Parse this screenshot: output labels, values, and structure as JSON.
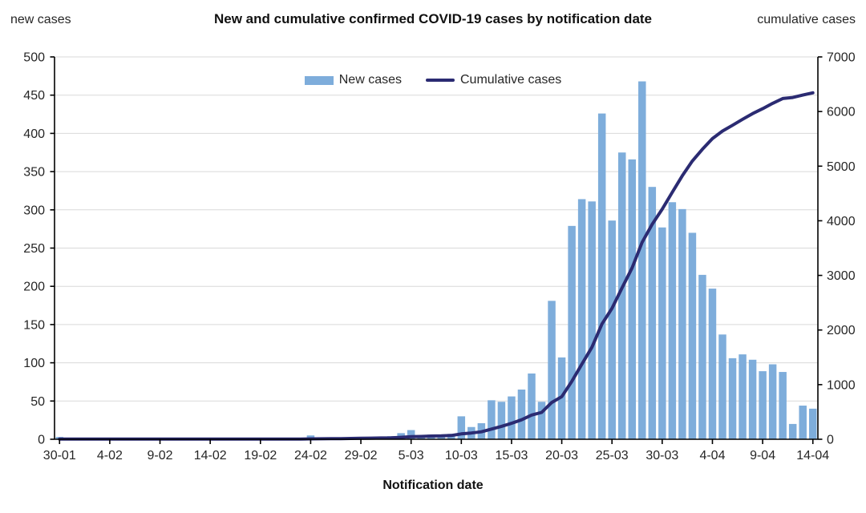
{
  "header": {
    "title": "New and cumulative confirmed COVID-19 cases by notification date",
    "left_axis_label": "new cases",
    "right_axis_label": "cumulative cases"
  },
  "legend": {
    "new_cases": "New cases",
    "cumulative": "Cumulative cases"
  },
  "colors": {
    "bar": "#7EADDB",
    "line": "#2B2B72",
    "grid": "#D9D9D9",
    "axis": "#000000",
    "text": "#262626"
  },
  "chart_data": {
    "type": "bar",
    "combo": "bar+line",
    "title": "New and cumulative confirmed COVID-19 cases by notification date",
    "xlabel": "Notification date",
    "left_ylabel": "new cases",
    "right_ylabel": "cumulative cases",
    "grid": true,
    "legend_position": "top-center",
    "categories": [
      "30-01",
      "31-01",
      "1-02",
      "2-02",
      "3-02",
      "4-02",
      "5-02",
      "6-02",
      "7-02",
      "8-02",
      "9-02",
      "10-02",
      "11-02",
      "12-02",
      "13-02",
      "14-02",
      "15-02",
      "16-02",
      "17-02",
      "18-02",
      "19-02",
      "20-02",
      "21-02",
      "22-02",
      "23-02",
      "24-02",
      "25-02",
      "26-02",
      "27-02",
      "28-02",
      "29-02",
      "1-03",
      "2-03",
      "3-03",
      "4-03",
      "5-03",
      "6-03",
      "7-03",
      "8-03",
      "9-03",
      "10-03",
      "11-03",
      "12-03",
      "13-03",
      "14-03",
      "15-03",
      "16-03",
      "17-03",
      "18-03",
      "19-03",
      "20-03",
      "21-03",
      "22-03",
      "23-03",
      "24-03",
      "25-03",
      "26-03",
      "27-03",
      "28-03",
      "29-03",
      "30-03",
      "31-03",
      "1-04",
      "2-04",
      "3-04",
      "4-04",
      "5-04",
      "6-04",
      "7-04",
      "8-04",
      "9-04",
      "10-04",
      "11-04",
      "12-04",
      "13-04",
      "14-04"
    ],
    "x_tick_every": 5,
    "x_tick_labels": [
      "30-01",
      "4-02",
      "9-02",
      "14-02",
      "19-02",
      "24-02",
      "29-02",
      "5-03",
      "10-03",
      "15-03",
      "20-03",
      "25-03",
      "30-03",
      "4-04",
      "9-04",
      "14-04"
    ],
    "series": [
      {
        "name": "New cases",
        "kind": "bar",
        "axis": "left",
        "values": [
          3,
          0,
          0,
          0,
          0,
          0,
          0,
          0,
          0,
          0,
          0,
          0,
          0,
          0,
          0,
          0,
          0,
          0,
          0,
          0,
          0,
          0,
          0,
          0,
          0,
          5,
          1,
          1,
          2,
          2,
          3,
          3,
          3,
          4,
          8,
          12,
          5,
          6,
          4,
          7,
          30,
          16,
          21,
          51,
          49,
          56,
          65,
          86,
          49,
          181,
          107,
          279,
          314,
          311,
          426,
          286,
          375,
          366,
          468,
          330,
          277,
          310,
          301,
          270,
          215,
          197,
          137,
          106,
          111,
          104,
          89,
          98,
          88,
          20,
          44,
          40
        ]
      },
      {
        "name": "Cumulative cases",
        "kind": "line",
        "axis": "right",
        "values": [
          3,
          3,
          3,
          3,
          3,
          3,
          3,
          3,
          3,
          3,
          3,
          3,
          3,
          3,
          3,
          3,
          3,
          3,
          3,
          3,
          3,
          3,
          3,
          3,
          3,
          8,
          9,
          10,
          12,
          14,
          17,
          20,
          23,
          27,
          35,
          47,
          52,
          58,
          62,
          69,
          99,
          115,
          136,
          187,
          236,
          292,
          357,
          443,
          492,
          673,
          780,
          1059,
          1373,
          1684,
          2110,
          2396,
          2771,
          3137,
          3605,
          3935,
          4212,
          4522,
          4823,
          5093,
          5308,
          5505,
          5642,
          5748,
          5859,
          5963,
          6052,
          6150,
          6238,
          6258,
          6302,
          6342
        ]
      }
    ],
    "left_axis": {
      "min": 0,
      "max": 500,
      "step": 50
    },
    "right_axis": {
      "min": 0,
      "max": 7000,
      "step": 1000
    }
  }
}
